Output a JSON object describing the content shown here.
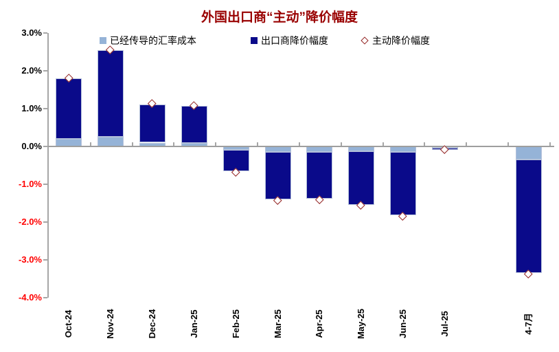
{
  "colors": {
    "title": "#990000",
    "negative_label": "#FF0000",
    "positive_label": "#000000",
    "axis_line": "#A6A6A6",
    "zero_line": "#9E9E9E",
    "bar_border": "#B4C1DA",
    "bar_light_blue": "#95B3D7",
    "bar_navy": "#0A0A8A",
    "diamond_outline": "#932423",
    "background": "#FFFFFF"
  },
  "chart_data": {
    "type": "bar",
    "stacked": true,
    "title": "外国出口商“主动”降价幅度",
    "categories": [
      "Oct-24",
      "Nov-24",
      "Dec-24",
      "Jan-25",
      "Feb-25",
      "Mar-25",
      "Apr-25",
      "May-25",
      "Jun-25",
      "Jul-25",
      "4-7月"
    ],
    "gap_slot_after_index": 9,
    "ylim": [
      -4,
      3
    ],
    "grid": false,
    "legend_position": "top",
    "series": [
      {
        "name": "已经传导的汇率成本",
        "type": "bar",
        "color": "#95B3D7",
        "values": [
          0.2,
          0.25,
          0.1,
          0.1,
          -0.1,
          -0.15,
          -0.15,
          -0.13,
          -0.15,
          -0.03,
          -0.35
        ]
      },
      {
        "name": "出口商降价幅度",
        "type": "bar",
        "color": "#0A0A8A",
        "values": [
          1.6,
          2.3,
          1.02,
          0.97,
          -0.55,
          -1.25,
          -1.23,
          -1.41,
          -1.67,
          -0.07,
          -3.0
        ]
      },
      {
        "name": "主动降价幅度",
        "type": "scatter",
        "marker": "diamond-outline",
        "color": "#932423",
        "values": [
          1.8,
          2.55,
          1.13,
          1.08,
          -0.68,
          -1.44,
          -1.41,
          -1.57,
          -1.85,
          -0.08,
          -3.38
        ]
      }
    ],
    "stack_totals": [
      1.8,
      2.55,
      1.12,
      1.07,
      -0.65,
      -1.4,
      -1.38,
      -1.54,
      -1.82,
      -0.1,
      -3.35
    ],
    "y_ticks": [
      {
        "v": 3,
        "label": "3.0%",
        "color": "#000000"
      },
      {
        "v": 2,
        "label": "2.0%",
        "color": "#000000"
      },
      {
        "v": 1,
        "label": "1.0%",
        "color": "#000000"
      },
      {
        "v": 0,
        "label": "0.0%",
        "color": "#000000"
      },
      {
        "v": -1,
        "label": "-1.0%",
        "color": "#FF0000"
      },
      {
        "v": -2,
        "label": "-2.0%",
        "color": "#FF0000"
      },
      {
        "v": -3,
        "label": "-3.0%",
        "color": "#FF0000"
      },
      {
        "v": -4,
        "label": "-4.0%",
        "color": "#FF0000"
      }
    ]
  }
}
